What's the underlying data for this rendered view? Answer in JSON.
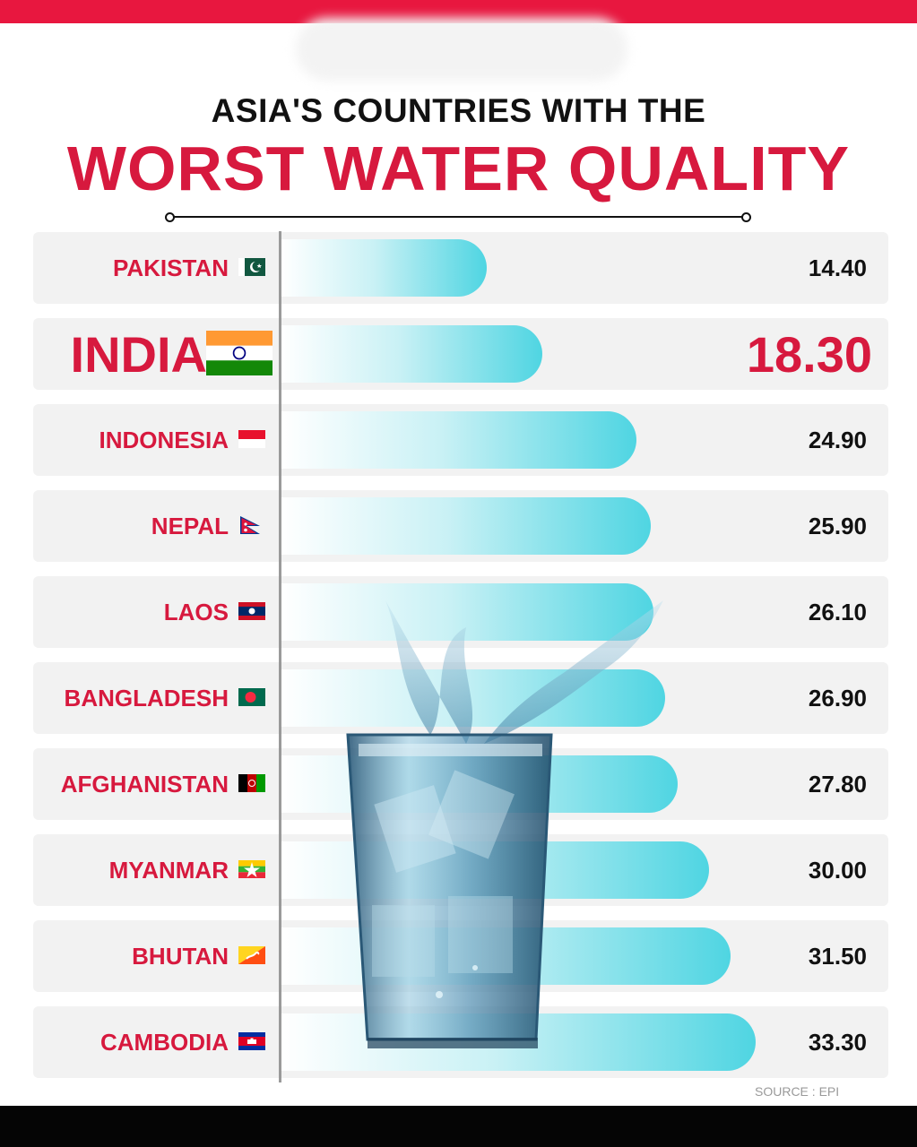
{
  "header": {
    "line1": "ASIA'S COUNTRIES WITH THE",
    "line2": "WORST WATER QUALITY"
  },
  "source": "SOURCE : EPI",
  "colors": {
    "accent": "#d7193e",
    "bar_end": "#4fd5e2",
    "row_bg": "#f2f2f2",
    "bottom_bar": "#050505"
  },
  "chart_data": {
    "type": "bar",
    "orientation": "horizontal",
    "categories": [
      "PAKISTAN",
      "INDIA",
      "INDONESIA",
      "NEPAL",
      "LAOS",
      "BANGLADESH",
      "AFGHANISTAN",
      "MYANMAR",
      "BHUTAN",
      "CAMBODIA"
    ],
    "values": [
      14.4,
      18.3,
      24.9,
      25.9,
      26.1,
      26.9,
      27.8,
      30.0,
      31.5,
      33.3
    ],
    "value_labels": [
      "14.40",
      "18.30",
      "24.90",
      "25.90",
      "26.10",
      "26.90",
      "27.80",
      "30.00",
      "31.50",
      "33.30"
    ],
    "flags": [
      "pakistan-flag-icon",
      "india-flag-icon",
      "indonesia-flag-icon",
      "nepal-flag-icon",
      "laos-flag-icon",
      "bangladesh-flag-icon",
      "afghanistan-flag-icon",
      "myanmar-flag-icon",
      "bhutan-flag-icon",
      "cambodia-flag-icon"
    ],
    "highlight": "INDIA",
    "grid": false,
    "legend": "none"
  }
}
